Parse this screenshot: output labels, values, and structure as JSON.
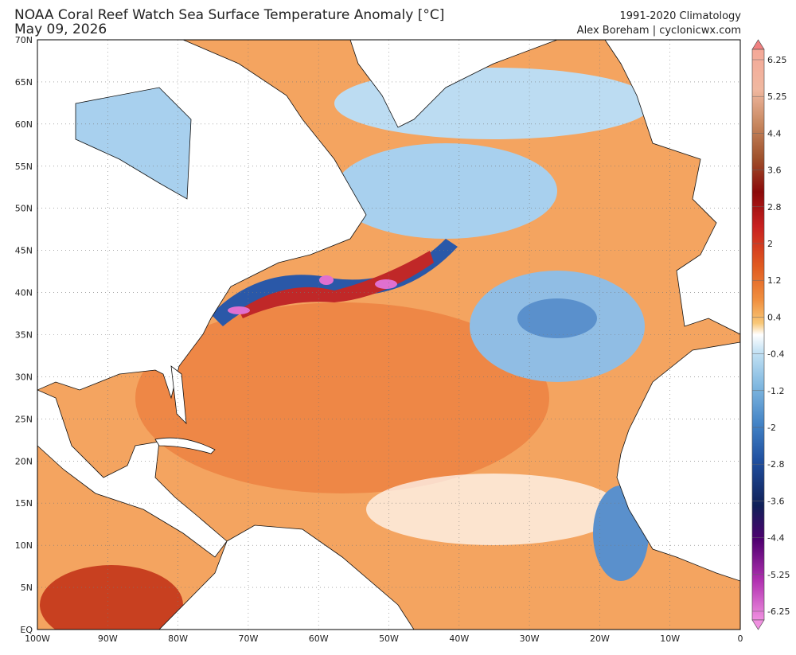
{
  "header": {
    "title": "NOAA Coral Reef Watch Sea Surface Temperature Anomaly [°C]",
    "date": "May 09, 2026",
    "climatology": "1991-2020 Climatology",
    "credit": "Alex Boreham | cyclonicwx.com"
  },
  "axes": {
    "lat_labels": [
      "70N",
      "65N",
      "60N",
      "55N",
      "50N",
      "45N",
      "40N",
      "35N",
      "30N",
      "25N",
      "20N",
      "15N",
      "10N",
      "5N",
      "EQ"
    ],
    "lon_labels": [
      "100W",
      "90W",
      "80W",
      "70W",
      "60W",
      "50W",
      "40W",
      "30W",
      "20W",
      "10W",
      "0"
    ]
  },
  "colorbar": {
    "labels": [
      "6.25",
      "5.25",
      "4.4",
      "3.6",
      "2.8",
      "2",
      "1.2",
      "0.4",
      "-0.4",
      "-1.2",
      "-2",
      "-2.8",
      "-3.6",
      "-4.4",
      "-5.25",
      "-6.25"
    ]
  }
}
